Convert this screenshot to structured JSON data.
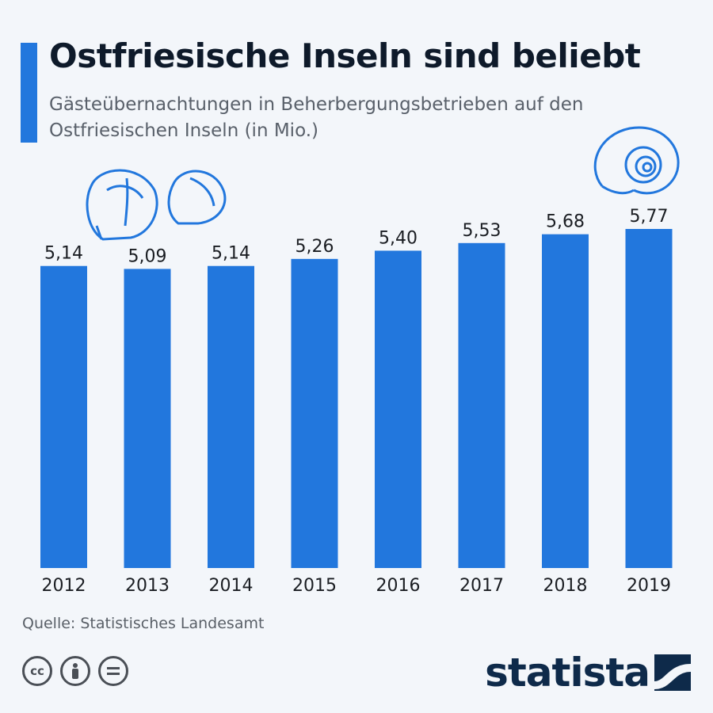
{
  "header": {
    "title": "Ostfriesische Inseln sind beliebt",
    "subtitle": "Gästeübernachtungen in Beherbergungsbetrieben auf den Ostfriesischen Inseln (in Mio.)"
  },
  "footer": {
    "source": "Quelle: Statistisches Landesamt",
    "brand": "statista",
    "license_icons": [
      "cc-icon",
      "attribution-icon",
      "no-derivatives-icon"
    ]
  },
  "colors": {
    "bar": "#2277dd",
    "accent": "#2277dd",
    "text": "#0e1a2a"
  },
  "chart_data": {
    "type": "bar",
    "title": "Ostfriesische Inseln sind beliebt",
    "xlabel": "",
    "ylabel": "",
    "categories": [
      "2012",
      "2013",
      "2014",
      "2015",
      "2016",
      "2017",
      "2018",
      "2019"
    ],
    "values": [
      5.14,
      5.09,
      5.14,
      5.26,
      5.4,
      5.53,
      5.68,
      5.77
    ],
    "value_labels": [
      "5,14",
      "5,09",
      "5,14",
      "5,26",
      "5,40",
      "5,53",
      "5,68",
      "5,77"
    ],
    "ylim": [
      0,
      5.77
    ],
    "grid": false
  }
}
